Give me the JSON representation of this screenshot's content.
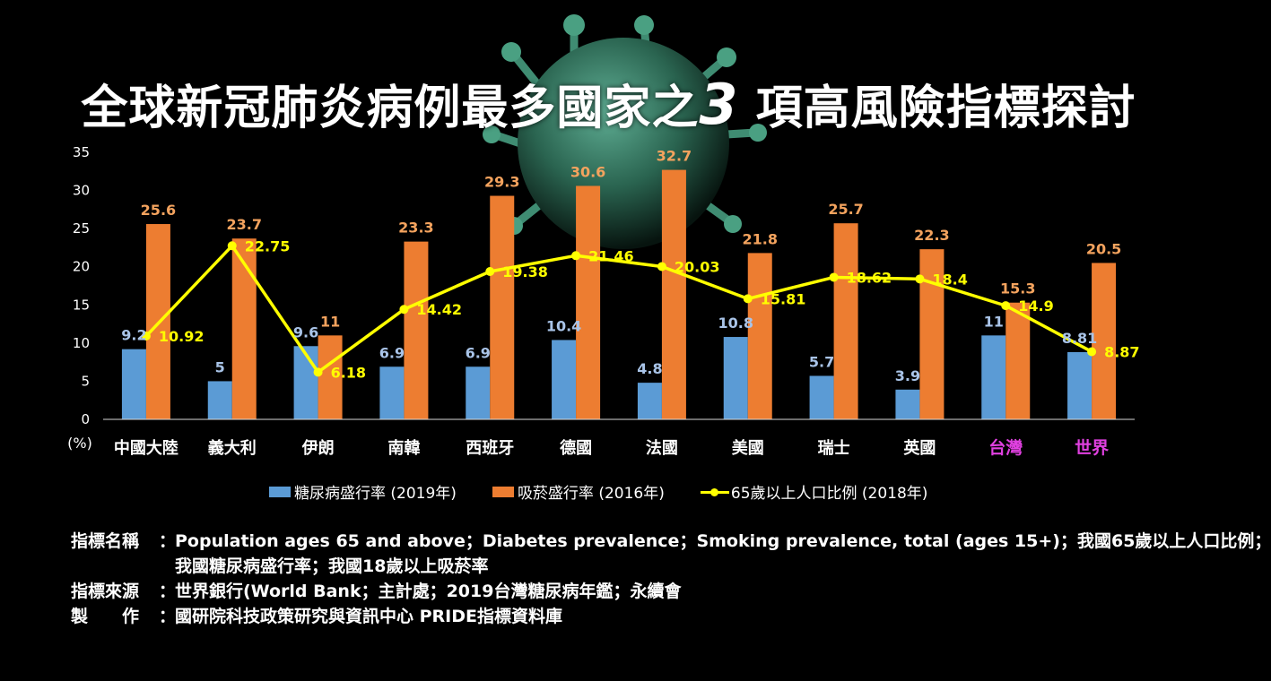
{
  "title_main": "全球新冠肺炎病例最多國家之",
  "title_number": "3",
  "title_tail": " 項高風險指標探討",
  "colors": {
    "diabetes": "#5b9bd5",
    "smoking": "#ed7d31",
    "elderly": "#ffff00",
    "highlight_label": "#e040e0",
    "diabetes_label": "#a9c4e8",
    "smoking_label": "#f4a35e"
  },
  "chart_data": {
    "type": "bar",
    "categories": [
      "中國大陸",
      "義大利",
      "伊朗",
      "南韓",
      "西班牙",
      "德國",
      "法國",
      "美國",
      "瑞士",
      "英國",
      "台灣",
      "世界"
    ],
    "highlighted_categories": [
      "台灣",
      "世界"
    ],
    "series": [
      {
        "name": "糖尿病盛行率 (2019年)",
        "type": "bar",
        "color": "#5b9bd5",
        "values": [
          9.2,
          5,
          9.6,
          6.9,
          6.9,
          10.4,
          4.8,
          10.8,
          5.7,
          3.9,
          11,
          8.81
        ]
      },
      {
        "name": "吸菸盛行率 (2016年)",
        "type": "bar",
        "color": "#ed7d31",
        "values": [
          25.6,
          23.7,
          11,
          23.3,
          29.3,
          30.6,
          32.7,
          21.8,
          25.7,
          22.3,
          15.3,
          20.5
        ]
      },
      {
        "name": "65歲以上人口比例 (2018年)",
        "type": "line",
        "color": "#ffff00",
        "values": [
          10.92,
          22.75,
          6.18,
          14.42,
          19.38,
          21.46,
          20.03,
          15.81,
          18.62,
          18.4,
          14.9,
          8.87
        ]
      }
    ],
    "ylim": [
      0,
      35
    ],
    "yticks": [
      0,
      5,
      10,
      15,
      20,
      25,
      30,
      35
    ],
    "ylabel": "(%)",
    "grid": false,
    "legend_position": "bottom"
  },
  "notes": [
    {
      "label": "指標名稱",
      "colon": "：",
      "lines": [
        "Population ages 65 and above；Diabetes prevalence；Smoking prevalence, total (ages 15+)；我國65歲以上人口比例；",
        "我國糖尿病盛行率；我國18歲以上吸菸率"
      ]
    },
    {
      "label": "指標來源",
      "colon": "：",
      "lines": [
        "世界銀行(World Bank；主計處；2019台灣糖尿病年鑑；永續會"
      ]
    },
    {
      "label": "製　　作",
      "colon": "：",
      "lines": [
        "國研院科技政策研究與資訊中心  PRIDE指標資料庫"
      ]
    }
  ]
}
